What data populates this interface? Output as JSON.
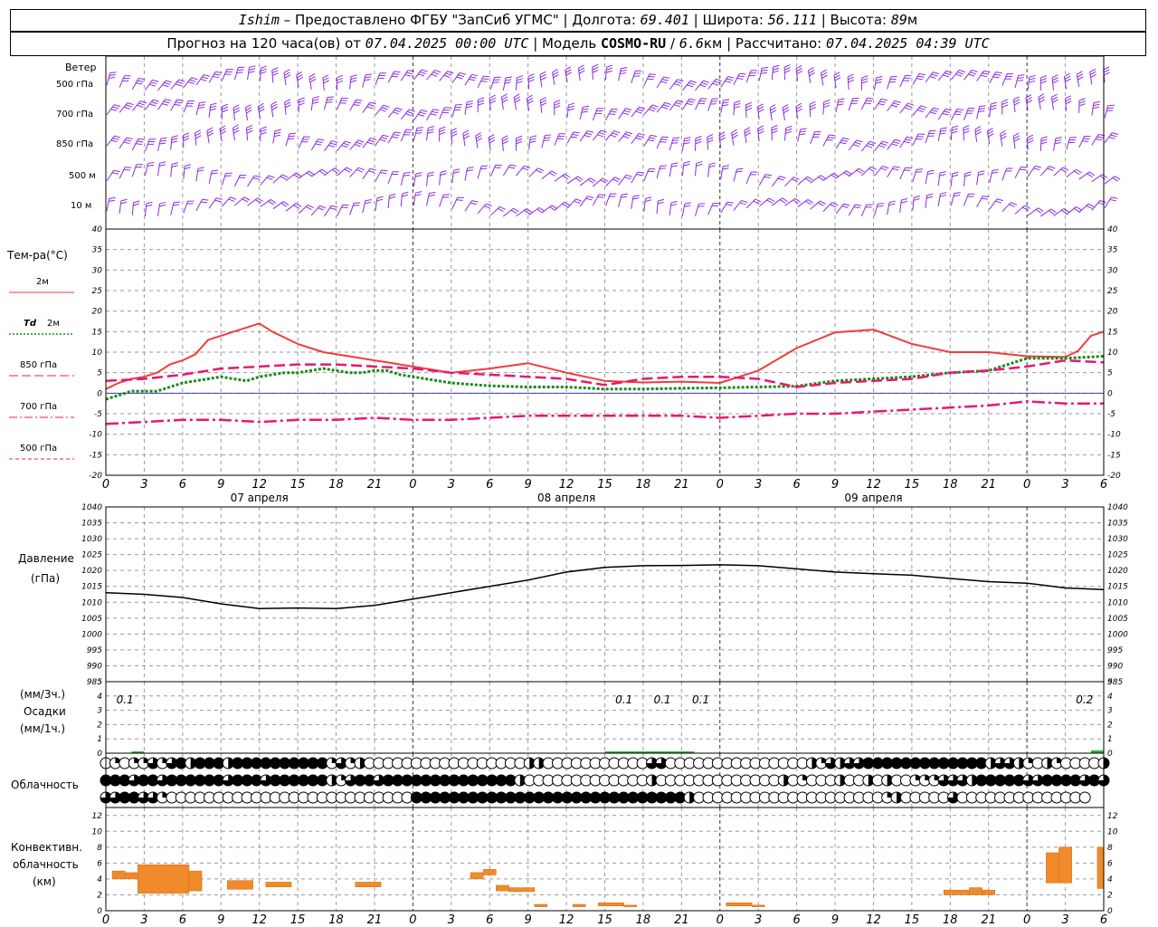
{
  "header": {
    "station": "Ishim",
    "provider": "Предоставлено ФГБУ \"ЗапСиб УГМС\"",
    "lon_label": "Долгота:",
    "lon": "69.401",
    "lat_label": "Широта:",
    "lat": "56.111",
    "alt_label": "Высота:",
    "alt": "89",
    "alt_unit": "м",
    "forecast_label": "Прогноз на 120 часа(ов) от",
    "forecast_from": "07.04.2025 00:00 UTC",
    "model_label": "Модель",
    "model": "COSMO-RU",
    "resolution": "6.6",
    "res_unit": "км",
    "calc_label": "Рассчитано:",
    "calc_time": "07.04.2025 04:39 UTC"
  },
  "panels": {
    "wind": {
      "title": "Ветер",
      "levels": [
        "500 гПа",
        "700 гПа",
        "850 гПа",
        "500 м",
        "10 м"
      ]
    },
    "temperature": {
      "title": "Тем-ра(°C)",
      "legend": [
        {
          "label": "2м",
          "color": "#f03c3c",
          "dash": "solid"
        },
        {
          "label": "Td",
          "label2": "2м",
          "color": "#1a8a1a",
          "dash": "dotted"
        },
        {
          "label": "850 гПа",
          "color": "#e8186e",
          "dash": "long"
        },
        {
          "label": "700 гПа",
          "color": "#e8186e",
          "dash": "dashdot"
        },
        {
          "label": "500 гПа",
          "color": "#e8186e",
          "dash": "short"
        }
      ]
    },
    "pressure": {
      "title": "Давление",
      "unit": "(гПа)"
    },
    "precip": {
      "unit1": "(мм/3ч.)",
      "title": "Осадки",
      "unit2": "(мм/1ч.)"
    },
    "cloud": {
      "title": "Облачность"
    },
    "conv": {
      "title1": "Конвективн.",
      "title2": "облачность",
      "unit": "(км)"
    }
  },
  "time_axis": {
    "hour_ticks": [
      "0",
      "3",
      "6",
      "9",
      "12",
      "15",
      "18",
      "21",
      "0",
      "3",
      "6",
      "9",
      "12",
      "15",
      "18",
      "21",
      "0",
      "3",
      "6",
      "9",
      "12",
      "15",
      "18",
      "21",
      "0",
      "3",
      "6"
    ],
    "dates": [
      {
        "label": "07 апреля",
        "at_hour": 12
      },
      {
        "label": "08 апреля",
        "at_hour": 36
      },
      {
        "label": "09 апреля",
        "at_hour": 60
      }
    ]
  },
  "chart_data": [
    {
      "type": "line",
      "panel": "temperature",
      "x_unit": "hours from 07.04.2025 00:00 UTC",
      "x_range": [
        0,
        78
      ],
      "ylim": [
        -20,
        40
      ],
      "yticks": [
        40,
        35,
        30,
        25,
        20,
        15,
        10,
        5,
        0,
        -5,
        -10,
        -15,
        -20
      ],
      "grid": true,
      "series": [
        {
          "name": "2м",
          "color": "#f03c3c",
          "x": [
            0,
            1,
            2,
            3,
            4,
            5,
            6,
            7,
            8,
            9,
            10,
            11,
            12,
            13,
            14,
            15,
            16,
            17,
            18,
            19,
            20,
            21,
            22,
            23,
            24,
            27,
            30,
            33,
            36,
            39,
            42,
            45,
            48,
            51,
            54,
            57,
            60,
            63,
            66,
            69,
            72,
            75,
            76,
            77,
            78
          ],
          "y": [
            1,
            2.5,
            3.5,
            4,
            5,
            7,
            8,
            9.5,
            13,
            14,
            15,
            16,
            17,
            15,
            13.5,
            12,
            11,
            10,
            9.5,
            9,
            8.5,
            8,
            7.5,
            7,
            6.5,
            5,
            6,
            7.3,
            5,
            3,
            2.6,
            2.8,
            2.5,
            5.5,
            11,
            14.8,
            15.5,
            12,
            10,
            10,
            9,
            8.8,
            10.3,
            14,
            15
          ]
        },
        {
          "name": "Td 2м",
          "color": "#1a8a1a",
          "x": [
            0,
            1,
            2,
            3,
            4,
            5,
            6,
            7,
            8,
            9,
            10,
            11,
            12,
            13,
            14,
            15,
            16,
            17,
            18,
            19,
            20,
            21,
            22,
            23,
            24,
            27,
            30,
            33,
            36,
            39,
            42,
            45,
            48,
            51,
            54,
            57,
            60,
            63,
            66,
            69,
            72,
            75,
            78
          ],
          "y": [
            -1.5,
            -0.5,
            0.5,
            0.5,
            0.5,
            1.5,
            2.5,
            3,
            3.5,
            4,
            3.5,
            3,
            4,
            4.5,
            5,
            5,
            5.5,
            6,
            5.5,
            5,
            5,
            5.5,
            5.5,
            4.5,
            4,
            2.5,
            1.8,
            1.5,
            1.5,
            1,
            1,
            1.2,
            1.3,
            1.5,
            1.7,
            3,
            3.5,
            4,
            5,
            5.5,
            8.5,
            8.5,
            9
          ]
        },
        {
          "name": "850 гПа",
          "color": "#e8186e",
          "x": [
            0,
            3,
            6,
            9,
            12,
            15,
            18,
            21,
            24,
            27,
            30,
            33,
            36,
            39,
            42,
            45,
            48,
            51,
            54,
            57,
            60,
            63,
            66,
            69,
            72,
            75,
            78
          ],
          "y": [
            3,
            3.5,
            4.5,
            6,
            6.5,
            7,
            7,
            6.5,
            6,
            5,
            4.5,
            4,
            3.5,
            2,
            3.5,
            4,
            4,
            3.5,
            1.5,
            2.5,
            3,
            3.5,
            5,
            5.5,
            6.5,
            8,
            7.5
          ]
        },
        {
          "name": "700 гПа",
          "color": "#e8186e",
          "x": [
            0,
            3,
            6,
            9,
            12,
            15,
            18,
            21,
            24,
            27,
            30,
            33,
            36,
            39,
            42,
            45,
            48,
            51,
            54,
            57,
            60,
            63,
            66,
            69,
            72,
            75,
            78
          ],
          "y": [
            -7.5,
            -7,
            -6.5,
            -6.5,
            -7,
            -6.5,
            -6.5,
            -6,
            -6.5,
            -6.5,
            -6,
            -5.5,
            -5.5,
            -5.5,
            -5.5,
            -5.5,
            -6,
            -5.5,
            -5,
            -5,
            -4.5,
            -4,
            -3.5,
            -3,
            -2,
            -2.5,
            -2.5
          ]
        },
        {
          "name": "500 гПа",
          "color": "#e8186e",
          "x": [],
          "y": []
        }
      ]
    },
    {
      "type": "line",
      "panel": "pressure",
      "x_range": [
        0,
        78
      ],
      "ylim": [
        985,
        1040
      ],
      "yticks": [
        1040,
        1035,
        1030,
        1025,
        1020,
        1015,
        1010,
        1005,
        1000,
        995,
        990,
        985
      ],
      "grid": true,
      "series": [
        {
          "name": "",
          "color": "#000000",
          "x": [
            0,
            3,
            6,
            9,
            12,
            15,
            18,
            21,
            24,
            27,
            30,
            33,
            36,
            39,
            42,
            45,
            48,
            51,
            54,
            57,
            60,
            63,
            66,
            69,
            72,
            75,
            78
          ],
          "y": [
            1013,
            1012.5,
            1011.5,
            1009.5,
            1008,
            1008.2,
            1008,
            1009,
            1011,
            1013,
            1015,
            1017,
            1019.5,
            1021,
            1021.5,
            1021.6,
            1021.8,
            1021.5,
            1020.5,
            1019.5,
            1019,
            1018.5,
            1017.5,
            1016.5,
            1016,
            1014.5,
            1014
          ]
        }
      ]
    },
    {
      "type": "bar",
      "panel": "precipitation",
      "ylim": [
        0,
        5
      ],
      "yticks": [
        5,
        4,
        3,
        2,
        1,
        0
      ],
      "annotations": [
        {
          "at_hour": 1.5,
          "text": "0.1"
        },
        {
          "at_hour": 40.5,
          "text": "0.1"
        },
        {
          "at_hour": 43.5,
          "text": "0.1"
        },
        {
          "at_hour": 46.5,
          "text": "0.1"
        },
        {
          "at_hour": 76.5,
          "text": "0.2"
        }
      ],
      "bars_1h": [
        {
          "from": 2,
          "to": 3,
          "value": 0.1
        },
        {
          "from": 39,
          "to": 46,
          "value": 0.1
        },
        {
          "from": 77,
          "to": 78,
          "value": 0.2
        }
      ]
    },
    {
      "type": "table",
      "panel": "cloudiness",
      "note": "fractional cover per hour, 0 to 1, rows = high, middle, low",
      "rows": {
        "high": [
          0,
          0.25,
          0,
          0.25,
          0.25,
          0.75,
          0.25,
          0.75,
          1,
          0.5,
          1,
          1,
          1,
          0.5,
          1,
          1,
          1,
          1,
          1,
          1,
          1,
          1,
          1,
          1,
          0.25,
          0.75,
          0.25,
          0.5,
          0,
          0,
          0,
          0,
          0,
          0,
          0,
          0,
          0,
          0,
          0,
          0,
          0,
          0,
          0,
          0,
          0,
          0.5,
          0.5,
          0,
          0,
          0,
          0,
          0,
          0,
          0,
          0,
          0,
          0,
          0,
          0.75,
          0.75,
          0,
          0,
          0,
          0,
          0,
          0,
          0,
          0,
          0,
          0,
          0,
          0,
          0,
          0,
          0,
          0.5,
          0.25,
          0.75,
          0.5,
          0.75,
          0.75,
          1,
          1,
          1,
          1,
          1,
          1,
          1,
          1,
          1,
          1,
          1,
          1,
          1,
          0.5,
          0.75,
          0.75,
          0.5,
          0.25,
          0,
          0.5,
          0.25,
          0,
          0,
          0,
          0,
          0.5
        ],
        "middle": [
          1,
          1,
          1,
          0.75,
          1,
          1,
          0.75,
          1,
          1,
          1,
          1,
          1,
          1,
          0.75,
          1,
          1,
          1,
          0.75,
          1,
          1,
          1,
          1,
          1,
          1,
          0.5,
          0.25,
          0.75,
          1,
          1,
          0.75,
          1,
          1,
          1,
          1,
          1,
          1,
          1,
          1,
          1,
          1,
          1,
          1,
          1,
          1,
          0.5,
          0,
          0,
          0,
          0,
          0,
          0,
          0,
          0,
          0,
          0,
          0,
          0,
          0,
          0.5,
          0,
          0,
          0,
          0,
          0,
          0,
          0,
          0,
          0,
          0,
          0,
          0,
          0,
          0.5,
          0,
          0.25,
          0,
          0,
          0,
          0.5,
          0,
          0,
          0.5,
          0,
          0.5,
          0,
          0,
          0.25,
          0.25,
          0.25,
          0.75,
          0.75,
          0.75,
          0.5,
          1,
          1,
          1,
          1,
          1,
          0.75,
          0.75,
          1,
          1,
          1,
          1,
          0.75,
          1,
          0.75
        ],
        "low": [
          0.75,
          0.75,
          1,
          1,
          0.75,
          0.75,
          0.25,
          0,
          0,
          0,
          0,
          0,
          0,
          0,
          0,
          0,
          0,
          0,
          0,
          0,
          0,
          0,
          0,
          0,
          0,
          0,
          0,
          0,
          0,
          0,
          0,
          0,
          0,
          1,
          1,
          1,
          1,
          1,
          1,
          1,
          1,
          1,
          1,
          1,
          1,
          1,
          1,
          1,
          1,
          1,
          1,
          1,
          1,
          1,
          1,
          1,
          1,
          1,
          1,
          1,
          1,
          1,
          0.5,
          0,
          0,
          0,
          0,
          0,
          0,
          0,
          0,
          0,
          0,
          0,
          0,
          0,
          0,
          0,
          0,
          0,
          0,
          0,
          0,
          0.25,
          0.5,
          0,
          0,
          0,
          0,
          0,
          0.75,
          0,
          0,
          0,
          0,
          0,
          0,
          0,
          0,
          0,
          0,
          0,
          0,
          0,
          0
        ]
      }
    },
    {
      "type": "bar",
      "panel": "convective_cloud",
      "ylim": [
        0,
        13
      ],
      "yticks": [
        12,
        10,
        8,
        6,
        4,
        2,
        0
      ],
      "unit": "km",
      "bars": [
        {
          "from": 0.5,
          "to": 1.5,
          "bottom": 4,
          "top": 5
        },
        {
          "from": 1.5,
          "to": 2.5,
          "bottom": 4,
          "top": 4.8
        },
        {
          "from": 2.5,
          "to": 6.5,
          "bottom": 2.2,
          "top": 5.8
        },
        {
          "from": 6.5,
          "to": 7.5,
          "bottom": 2.5,
          "top": 5
        },
        {
          "from": 9.5,
          "to": 11.5,
          "bottom": 2.7,
          "top": 3.8
        },
        {
          "from": 12.5,
          "to": 14.5,
          "bottom": 3,
          "top": 3.6
        },
        {
          "from": 19.5,
          "to": 21.5,
          "bottom": 3,
          "top": 3.6
        },
        {
          "from": 28.5,
          "to": 29.5,
          "bottom": 4,
          "top": 4.8
        },
        {
          "from": 29.5,
          "to": 30.5,
          "bottom": 4.5,
          "top": 5.2
        },
        {
          "from": 30.5,
          "to": 31.5,
          "bottom": 2.5,
          "top": 3.2
        },
        {
          "from": 31.5,
          "to": 33.5,
          "bottom": 2.4,
          "top": 2.9
        },
        {
          "from": 33.5,
          "to": 34.5,
          "bottom": 0.5,
          "top": 0.8
        },
        {
          "from": 36.5,
          "to": 37.5,
          "bottom": 0.5,
          "top": 0.8
        },
        {
          "from": 38.5,
          "to": 40.5,
          "bottom": 0.6,
          "top": 1
        },
        {
          "from": 40.5,
          "to": 41.5,
          "bottom": 0.5,
          "top": 0.7
        },
        {
          "from": 48.5,
          "to": 50.5,
          "bottom": 0.6,
          "top": 1
        },
        {
          "from": 50.5,
          "to": 51.5,
          "bottom": 0.5,
          "top": 0.7
        },
        {
          "from": 65.5,
          "to": 67.5,
          "bottom": 2,
          "top": 2.6
        },
        {
          "from": 67.5,
          "to": 68.5,
          "bottom": 2,
          "top": 2.9
        },
        {
          "from": 68.5,
          "to": 69.5,
          "bottom": 2,
          "top": 2.6
        },
        {
          "from": 73.5,
          "to": 74.5,
          "bottom": 3.5,
          "top": 7.3
        },
        {
          "from": 74.5,
          "to": 75.5,
          "bottom": 3.5,
          "top": 8
        },
        {
          "from": 77.5,
          "to": 78,
          "bottom": 2.8,
          "top": 8
        }
      ]
    }
  ]
}
